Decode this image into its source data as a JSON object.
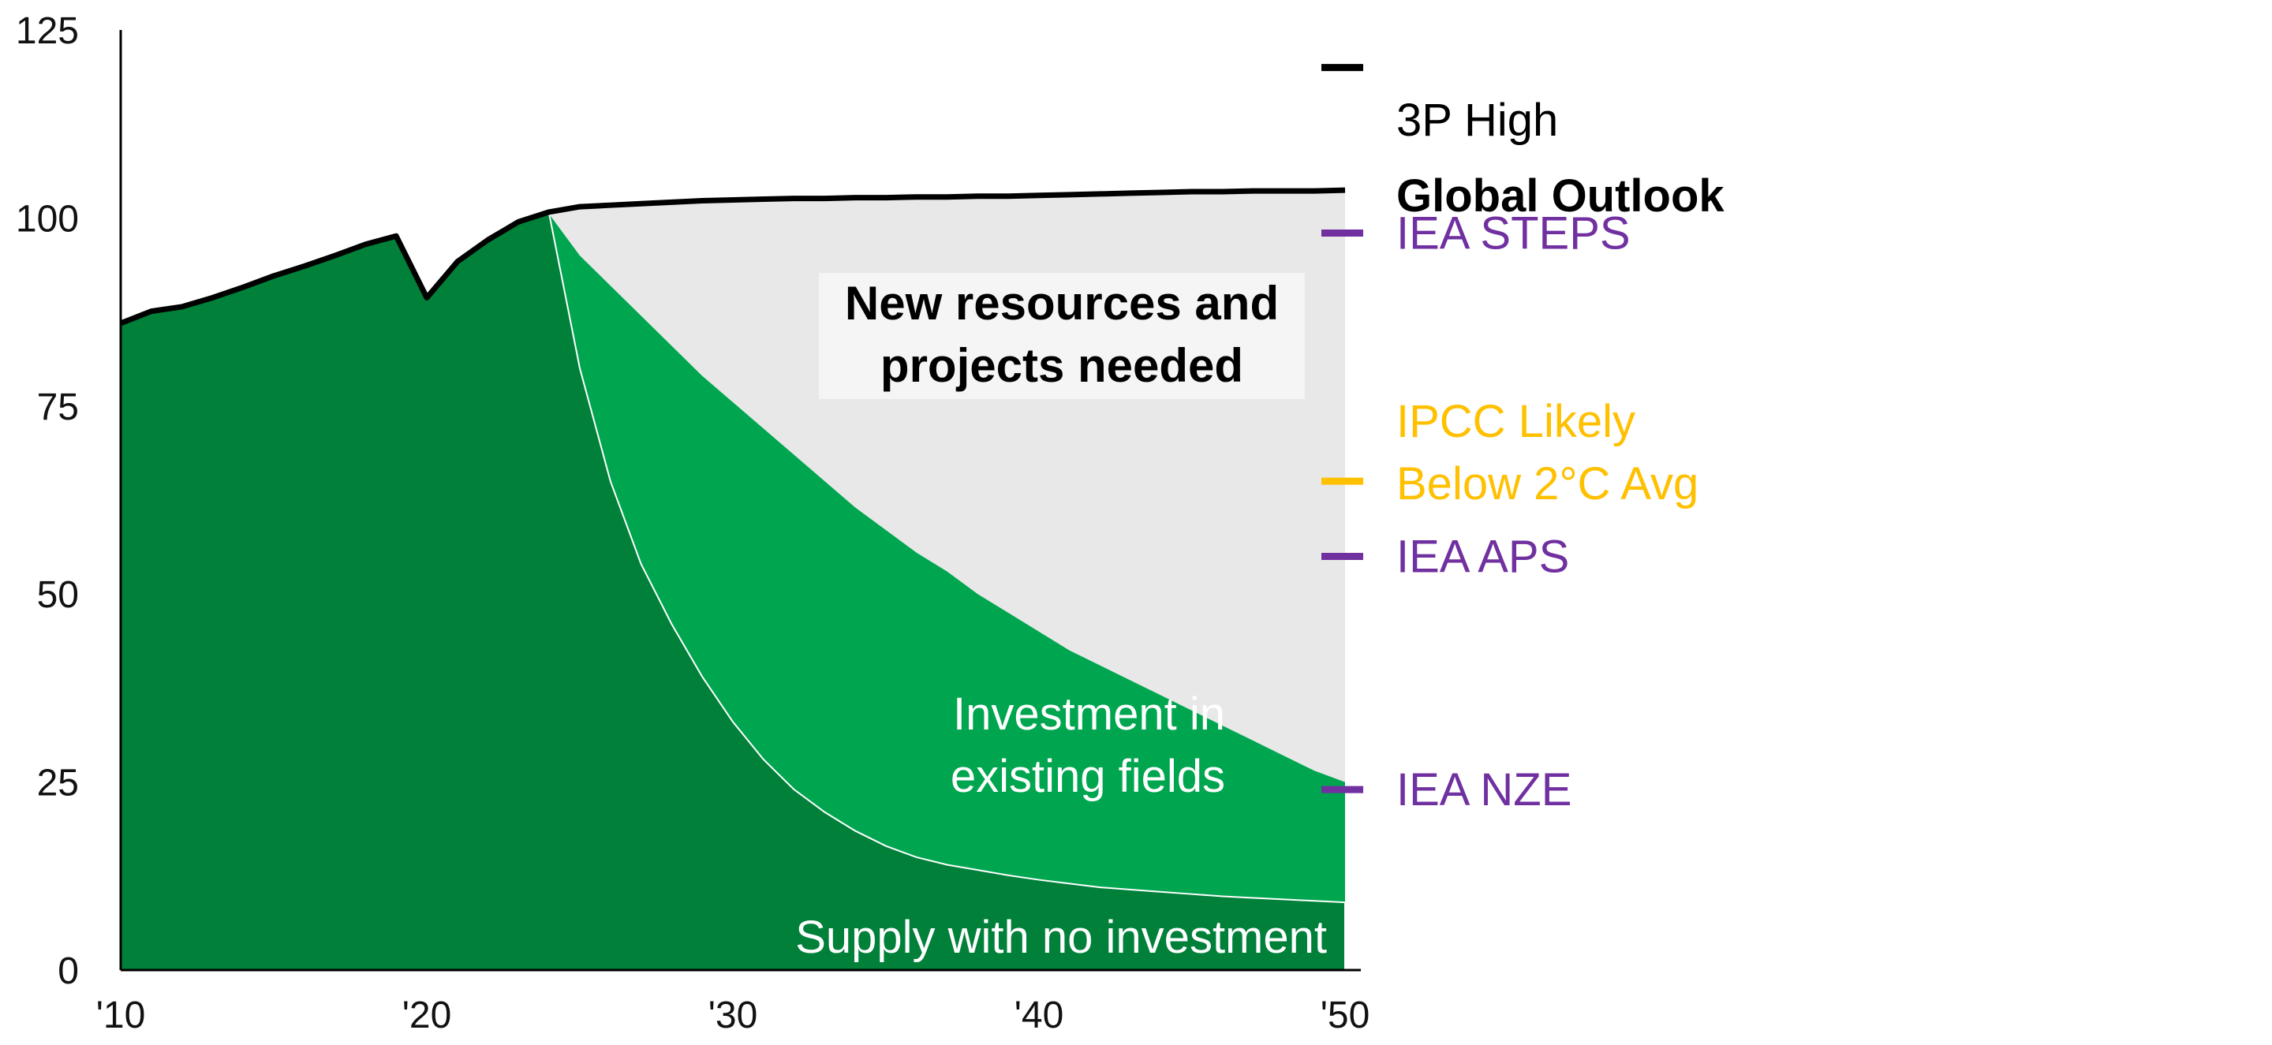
{
  "chart_data": {
    "type": "area",
    "x": [
      2010,
      2011,
      2012,
      2013,
      2014,
      2015,
      2016,
      2017,
      2018,
      2019,
      2020,
      2021,
      2022,
      2023,
      2024,
      2025,
      2026,
      2027,
      2028,
      2029,
      2030,
      2031,
      2032,
      2033,
      2034,
      2035,
      2036,
      2037,
      2038,
      2039,
      2040,
      2041,
      2042,
      2043,
      2044,
      2045,
      2046,
      2047,
      2048,
      2049,
      2050
    ],
    "series": [
      {
        "name": "3P High",
        "kind": "line",
        "color": "#000000",
        "values": [
          86,
          87.6,
          88.2,
          89.4,
          90.8,
          92.3,
          93.6,
          95.0,
          96.5,
          97.6,
          89.4,
          94.2,
          97.1,
          99.5,
          100.8,
          101.5,
          101.7,
          101.9,
          102.1,
          102.3,
          102.4,
          102.5,
          102.6,
          102.6,
          102.7,
          102.7,
          102.8,
          102.8,
          102.9,
          102.9,
          103.0,
          103.1,
          103.2,
          103.3,
          103.4,
          103.5,
          103.5,
          103.6,
          103.6,
          103.6,
          103.7
        ]
      },
      {
        "name": "Investment in existing fields",
        "kind": "area",
        "color": "#00a64f",
        "values": [
          86,
          87.6,
          88.2,
          89.4,
          90.8,
          92.3,
          93.6,
          95.0,
          96.5,
          97.6,
          89.4,
          94.2,
          97.1,
          99.5,
          100.5,
          95,
          91,
          87,
          83,
          79,
          75.5,
          72,
          68.5,
          65,
          61.5,
          58.5,
          55.5,
          53,
          50,
          47.5,
          45,
          42.5,
          40.5,
          38.5,
          36.5,
          34.5,
          32.5,
          30.5,
          28.5,
          26.5,
          25
        ]
      },
      {
        "name": "Supply with no investment",
        "kind": "area",
        "color": "#008039",
        "values": [
          86,
          87.6,
          88.2,
          89.4,
          90.8,
          92.3,
          93.6,
          95.0,
          96.5,
          97.6,
          89.4,
          94.2,
          97.1,
          99.5,
          100.5,
          80,
          65,
          54,
          46,
          39,
          33,
          28,
          24,
          21,
          18.5,
          16.5,
          15,
          14,
          13.3,
          12.6,
          12,
          11.5,
          11,
          10.7,
          10.4,
          10.1,
          9.8,
          9.6,
          9.4,
          9.2,
          9
        ]
      }
    ],
    "region_color": "#e8e8e8",
    "xlim": [
      2010,
      2050
    ],
    "ylim": [
      0,
      125
    ],
    "yticks": [
      0,
      25,
      50,
      75,
      100,
      125
    ],
    "xticks": [
      {
        "value": 2010,
        "label": "'10"
      },
      {
        "value": 2020,
        "label": "'20"
      },
      {
        "value": 2030,
        "label": "'30"
      },
      {
        "value": 2040,
        "label": "'40"
      },
      {
        "value": 2050,
        "label": "'50"
      }
    ],
    "legend": [
      {
        "label": "3P High",
        "color": "#000000",
        "value": 123,
        "marker_value": 120,
        "bold": false
      }
    ],
    "scenarios_heading": {
      "label": "Global Outlook",
      "color": "#000000",
      "value": 103,
      "bold": true
    },
    "scenarios": [
      {
        "label": "IEA STEPS",
        "color": "#7030a0",
        "value": 98
      },
      {
        "label": "IPCC Likely",
        "label2": "Below 2°C Avg",
        "color": "#ffc000",
        "value": 65,
        "label_value": 73
      },
      {
        "label": "IEA APS",
        "color": "#7030a0",
        "value": 55
      },
      {
        "label": "IEA NZE",
        "color": "#7030a0",
        "value": 24
      }
    ],
    "annotations": {
      "new_resources": {
        "line1": "New resources and",
        "line2": "projects needed"
      },
      "existing_fields": {
        "line1": "Investment in",
        "line2": "existing fields"
      },
      "no_investment": "Supply with no investment"
    }
  }
}
